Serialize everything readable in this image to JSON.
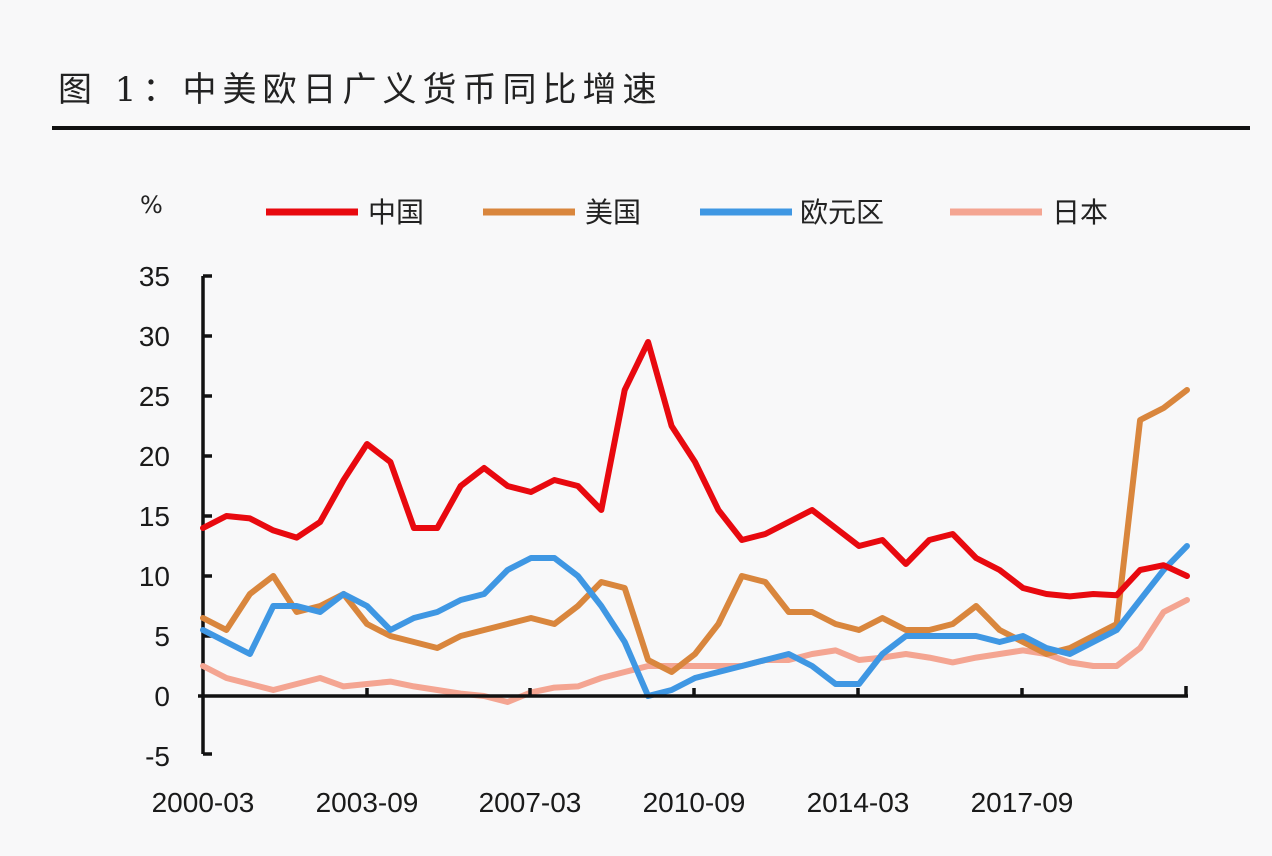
{
  "header": {
    "title": "图 1：中美欧日广义货币同比增速"
  },
  "chart_data": {
    "type": "line",
    "title": "图 1：中美欧日广义货币同比增速",
    "xlabel": "",
    "ylabel": "%",
    "unit": "%",
    "ylim": [
      -5,
      35
    ],
    "yticks": [
      -5,
      0,
      5,
      10,
      15,
      20,
      25,
      30,
      35
    ],
    "xticks": [
      "2000-03",
      "2003-09",
      "2007-03",
      "2010-09",
      "2014-03",
      "2017-09"
    ],
    "x_range": [
      "2000-03",
      "2021-03"
    ],
    "grid": false,
    "legend_position": "top",
    "x_months_from_2000_03": [
      0,
      6,
      12,
      18,
      24,
      30,
      36,
      42,
      48,
      54,
      60,
      66,
      72,
      78,
      84,
      90,
      96,
      102,
      108,
      114,
      120,
      126,
      132,
      138,
      144,
      150,
      156,
      162,
      168,
      174,
      180,
      186,
      192,
      198,
      204,
      210,
      216,
      222,
      228,
      234,
      240,
      246,
      252
    ],
    "x": [
      "2000-03",
      "2000-09",
      "2001-03",
      "2001-09",
      "2002-03",
      "2002-09",
      "2003-03",
      "2003-09",
      "2004-03",
      "2004-09",
      "2005-03",
      "2005-09",
      "2006-03",
      "2006-09",
      "2007-03",
      "2007-09",
      "2008-03",
      "2008-09",
      "2009-03",
      "2009-09",
      "2010-03",
      "2010-09",
      "2011-03",
      "2011-09",
      "2012-03",
      "2012-09",
      "2013-03",
      "2013-09",
      "2014-03",
      "2014-09",
      "2015-03",
      "2015-09",
      "2016-03",
      "2016-09",
      "2017-03",
      "2017-09",
      "2018-03",
      "2018-09",
      "2019-03",
      "2019-09",
      "2020-03",
      "2020-09",
      "2021-03"
    ],
    "series": [
      {
        "name": "中国",
        "color": "#e8090f",
        "values": [
          14.0,
          15.0,
          14.8,
          13.8,
          13.2,
          14.5,
          18.0,
          21.0,
          19.5,
          14.0,
          14.0,
          17.5,
          19.0,
          17.5,
          17.0,
          18.0,
          17.5,
          15.5,
          25.5,
          29.5,
          22.5,
          19.5,
          15.5,
          13.0,
          13.5,
          14.5,
          15.5,
          14.0,
          12.5,
          13.0,
          11.0,
          13.0,
          13.5,
          11.5,
          10.5,
          9.0,
          8.5,
          8.3,
          8.5,
          8.4,
          10.5,
          10.9,
          10.0
        ]
      },
      {
        "name": "美国",
        "color": "#d9863d",
        "values": [
          6.5,
          5.5,
          8.5,
          10.0,
          7.0,
          7.5,
          8.5,
          6.0,
          5.0,
          4.5,
          4.0,
          5.0,
          5.5,
          6.0,
          6.5,
          6.0,
          7.5,
          9.5,
          9.0,
          3.0,
          2.0,
          3.5,
          6.0,
          10.0,
          9.5,
          7.0,
          7.0,
          6.0,
          5.5,
          6.5,
          5.5,
          5.5,
          6.0,
          7.5,
          5.5,
          4.5,
          3.5,
          4.0,
          5.0,
          6.0,
          23.0,
          24.0,
          25.5
        ]
      },
      {
        "name": "欧元区",
        "color": "#3f97e3",
        "values": [
          5.5,
          4.5,
          3.5,
          7.5,
          7.5,
          7.0,
          8.5,
          7.5,
          5.5,
          6.5,
          7.0,
          8.0,
          8.5,
          10.5,
          11.5,
          11.5,
          10.0,
          7.5,
          4.5,
          0.0,
          0.5,
          1.5,
          2.0,
          2.5,
          3.0,
          3.5,
          2.5,
          1.0,
          1.0,
          3.5,
          5.0,
          5.0,
          5.0,
          5.0,
          4.5,
          5.0,
          4.0,
          3.5,
          4.5,
          5.5,
          8.0,
          10.5,
          12.5
        ]
      },
      {
        "name": "日本",
        "color": "#f4a592",
        "values": [
          2.5,
          1.5,
          1.0,
          0.5,
          1.0,
          1.5,
          0.8,
          1.0,
          1.2,
          0.8,
          0.5,
          0.2,
          0.0,
          -0.5,
          0.3,
          0.7,
          0.8,
          1.5,
          2.0,
          2.5,
          2.5,
          2.5,
          2.5,
          2.5,
          3.0,
          3.0,
          3.5,
          3.8,
          3.0,
          3.2,
          3.5,
          3.2,
          2.8,
          3.2,
          3.5,
          3.8,
          3.5,
          2.8,
          2.5,
          2.5,
          4.0,
          7.0,
          8.0
        ]
      }
    ]
  },
  "legend": {
    "unit": "%",
    "items": [
      {
        "label": "中国",
        "color": "#e8090f"
      },
      {
        "label": "美国",
        "color": "#d9863d"
      },
      {
        "label": "欧元区",
        "color": "#3f97e3"
      },
      {
        "label": "日本",
        "color": "#f4a592"
      }
    ]
  },
  "axes": {
    "y_labels": [
      "35",
      "30",
      "25",
      "20",
      "15",
      "10",
      "5",
      "0",
      "-5"
    ],
    "x_labels": [
      "2000-03",
      "2003-09",
      "2007-03",
      "2010-09",
      "2014-03",
      "2017-09"
    ]
  }
}
